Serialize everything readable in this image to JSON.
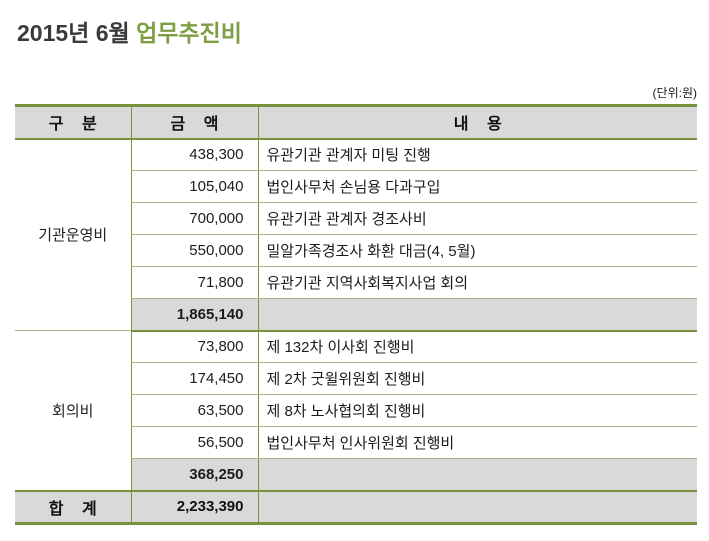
{
  "page": {
    "title_prefix": "2015년 6월 ",
    "title_highlight": "업무추진비",
    "unit_label": "(단위:원)",
    "colors": {
      "accent_green": "#76933C",
      "title_green": "#7E9E43",
      "header_fill": "#D9D9D9",
      "subtotal_fill": "#D9D9D9",
      "inner_line": "#A9B68A"
    }
  },
  "table": {
    "headers": {
      "category": "구 분",
      "amount": "금 액",
      "content": "내 용"
    },
    "sections": [
      {
        "category": "기관운영비",
        "rows": [
          {
            "amount": "438,300",
            "content": "유관기관 관계자 미팅 진행"
          },
          {
            "amount": "105,040",
            "content": "법인사무처 손님용 다과구입"
          },
          {
            "amount": "700,000",
            "content": "유관기관 관계자 경조사비"
          },
          {
            "amount": "550,000",
            "content": "밀알가족경조사 화환 대금(4, 5월)"
          },
          {
            "amount": "71,800",
            "content": "유관기관 지역사회복지사업 회의"
          }
        ],
        "subtotal": "1,865,140"
      },
      {
        "category": "회의비",
        "rows": [
          {
            "amount": "73,800",
            "content": "제 132차 이사회 진행비"
          },
          {
            "amount": "174,450",
            "content": "제 2차 굿윌위원회 진행비"
          },
          {
            "amount": "63,500",
            "content": "제 8차 노사협의회 진행비"
          },
          {
            "amount": "56,500",
            "content": "법인사무처 인사위원회 진행비"
          }
        ],
        "subtotal": "368,250"
      }
    ],
    "total": {
      "label": "합 계",
      "amount": "2,233,390"
    }
  }
}
